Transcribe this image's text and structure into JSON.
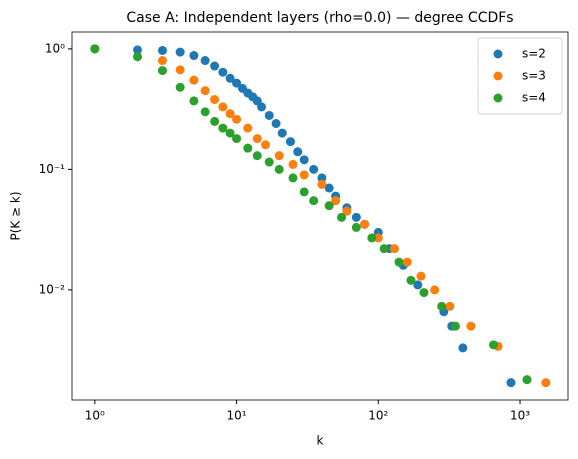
{
  "chart_data": {
    "type": "scatter",
    "title": "Case A: Independent layers (rho=0.0) — degree CCDFs",
    "x_label": "k",
    "y_label": "P(K ≥ k)",
    "log_x": true,
    "log_y": true,
    "grid": false,
    "legend": "upper right",
    "xlim": [
      0.69,
      2180
    ],
    "ylim": [
      0.00122,
      1.38
    ],
    "xticks": [
      {
        "value": 1,
        "label": "10⁰"
      },
      {
        "value": 10,
        "label": "10¹"
      },
      {
        "value": 100,
        "label": "10²"
      },
      {
        "value": 1000,
        "label": "10³"
      }
    ],
    "yticks": [
      {
        "value": 0.01,
        "label": "10⁻²"
      },
      {
        "value": 0.1,
        "label": "10⁻¹"
      },
      {
        "value": 1,
        "label": "10⁰"
      }
    ],
    "series": [
      {
        "name": "s=2",
        "color": "#1f77b4",
        "x": [
          1,
          2,
          3,
          4,
          5,
          6,
          7,
          8,
          9,
          10,
          11,
          12,
          13,
          14,
          15,
          17,
          19,
          21,
          24,
          27,
          30,
          35,
          40,
          45,
          50,
          60,
          70,
          80,
          100,
          120,
          150,
          190,
          290,
          330,
          395,
          863
        ],
        "values": [
          1,
          0.98,
          0.97,
          0.94,
          0.88,
          0.8,
          0.72,
          0.64,
          0.57,
          0.52,
          0.47,
          0.43,
          0.4,
          0.37,
          0.33,
          0.28,
          0.24,
          0.2,
          0.17,
          0.14,
          0.12,
          0.1,
          0.085,
          0.07,
          0.06,
          0.048,
          0.04,
          0.035,
          0.03,
          0.022,
          0.016,
          0.011,
          0.0066,
          0.005,
          0.0033,
          0.0017
        ]
      },
      {
        "name": "s=3",
        "color": "#ff7f0e",
        "x": [
          1,
          3,
          4,
          5,
          6,
          7,
          8,
          9,
          10,
          12,
          14,
          16,
          20,
          25,
          30,
          40,
          50,
          60,
          80,
          100,
          130,
          160,
          200,
          250,
          320,
          450,
          700,
          1520
        ],
        "values": [
          1,
          0.8,
          0.67,
          0.55,
          0.45,
          0.38,
          0.33,
          0.29,
          0.26,
          0.22,
          0.18,
          0.16,
          0.13,
          0.11,
          0.09,
          0.075,
          0.055,
          0.045,
          0.035,
          0.027,
          0.022,
          0.017,
          0.013,
          0.01,
          0.0073,
          0.005,
          0.0034,
          0.0017
        ]
      },
      {
        "name": "s=4",
        "color": "#2ca02c",
        "x": [
          1,
          2,
          3,
          4,
          5,
          6,
          7,
          8,
          9,
          10,
          12,
          14,
          17,
          20,
          25,
          30,
          35,
          45,
          55,
          70,
          90,
          110,
          140,
          170,
          210,
          280,
          350,
          650,
          1120
        ],
        "values": [
          1,
          0.86,
          0.66,
          0.48,
          0.37,
          0.3,
          0.25,
          0.22,
          0.2,
          0.18,
          0.15,
          0.13,
          0.115,
          0.1,
          0.085,
          0.065,
          0.055,
          0.05,
          0.04,
          0.033,
          0.027,
          0.022,
          0.017,
          0.012,
          0.0095,
          0.0073,
          0.005,
          0.0035,
          0.0018
        ]
      }
    ]
  }
}
